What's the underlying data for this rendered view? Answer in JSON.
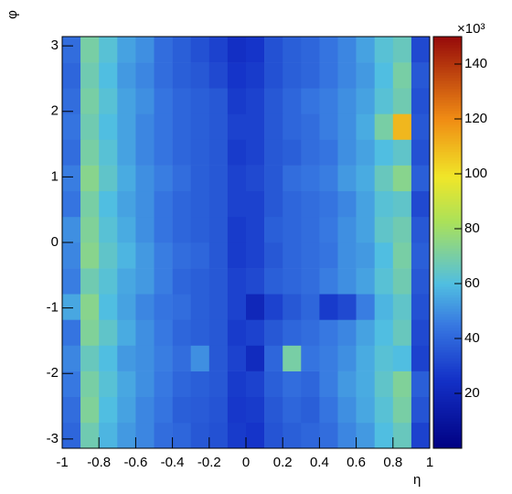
{
  "chart_data": {
    "type": "heatmap",
    "x_label": "η",
    "y_label": "φ",
    "z_multiplier": "×10³",
    "x_edges": [
      -1,
      -0.9,
      -0.8,
      -0.7,
      -0.6,
      -0.5,
      -0.4,
      -0.3,
      -0.2,
      -0.1,
      0,
      0.1,
      0.2,
      0.3,
      0.4,
      0.5,
      0.6,
      0.7,
      0.8,
      0.9,
      1
    ],
    "y_edges": [
      -3.1416,
      -2.7489,
      -2.3562,
      -1.9635,
      -1.5708,
      -1.1781,
      -0.7854,
      -0.3927,
      0,
      0.3927,
      0.7854,
      1.1781,
      1.5708,
      1.9635,
      2.3562,
      2.7489,
      3.1416
    ],
    "values": [
      [
        40,
        68,
        58,
        52,
        48,
        42,
        40,
        36,
        34,
        28,
        26,
        35,
        38,
        40,
        42,
        48,
        52,
        60,
        66,
        30
      ],
      [
        42,
        72,
        60,
        54,
        48,
        44,
        38,
        37,
        35,
        27,
        28,
        36,
        40,
        38,
        44,
        50,
        55,
        62,
        70,
        35
      ],
      [
        45,
        70,
        62,
        55,
        50,
        45,
        40,
        38,
        36,
        28,
        30,
        38,
        42,
        40,
        46,
        52,
        56,
        64,
        72,
        38
      ],
      [
        48,
        66,
        60,
        52,
        50,
        46,
        42,
        50,
        36,
        30,
        22,
        40,
        70,
        44,
        46,
        50,
        56,
        62,
        60,
        30
      ],
      [
        44,
        72,
        64,
        56,
        50,
        45,
        40,
        38,
        36,
        28,
        30,
        36,
        40,
        42,
        45,
        48,
        54,
        60,
        66,
        32
      ],
      [
        55,
        74,
        60,
        54,
        48,
        44,
        42,
        38,
        36,
        30,
        20,
        30,
        36,
        40,
        28,
        32,
        46,
        58,
        64,
        34
      ],
      [
        46,
        68,
        62,
        55,
        52,
        46,
        40,
        38,
        36,
        30,
        32,
        38,
        40,
        42,
        46,
        50,
        54,
        62,
        68,
        36
      ],
      [
        48,
        74,
        64,
        58,
        52,
        46,
        42,
        40,
        36,
        28,
        30,
        36,
        40,
        42,
        44,
        50,
        52,
        60,
        70,
        38
      ],
      [
        50,
        72,
        62,
        56,
        50,
        44,
        40,
        38,
        36,
        28,
        30,
        38,
        40,
        42,
        45,
        50,
        54,
        64,
        68,
        36
      ],
      [
        44,
        70,
        60,
        54,
        50,
        44,
        40,
        38,
        36,
        30,
        30,
        36,
        40,
        42,
        44,
        48,
        54,
        62,
        64,
        32
      ],
      [
        46,
        74,
        64,
        56,
        50,
        46,
        42,
        38,
        36,
        30,
        32,
        36,
        42,
        44,
        46,
        52,
        56,
        66,
        74,
        38
      ],
      [
        42,
        70,
        62,
        54,
        48,
        44,
        40,
        38,
        36,
        28,
        30,
        36,
        38,
        42,
        44,
        50,
        54,
        60,
        64,
        34
      ],
      [
        44,
        68,
        60,
        54,
        48,
        44,
        40,
        38,
        36,
        30,
        30,
        36,
        40,
        42,
        46,
        50,
        56,
        70,
        110,
        36
      ],
      [
        42,
        70,
        62,
        54,
        50,
        44,
        40,
        38,
        36,
        28,
        30,
        36,
        40,
        44,
        46,
        50,
        54,
        62,
        68,
        34
      ],
      [
        40,
        68,
        60,
        52,
        48,
        42,
        38,
        36,
        32,
        26,
        28,
        34,
        38,
        40,
        44,
        48,
        52,
        60,
        70,
        36
      ],
      [
        42,
        70,
        62,
        54,
        50,
        42,
        38,
        34,
        30,
        24,
        26,
        34,
        38,
        40,
        44,
        48,
        54,
        62,
        66,
        32
      ]
    ],
    "xlim": [
      -1,
      1
    ],
    "xticks": [
      -1,
      -0.8,
      -0.6,
      -0.4,
      -0.2,
      0,
      0.2,
      0.4,
      0.6,
      0.8,
      1
    ],
    "ylim": [
      -3.1416,
      3.1416
    ],
    "yticks": [
      -3,
      -2,
      -1,
      0,
      1,
      2,
      3
    ],
    "zlim": [
      0,
      150
    ],
    "zticks": [
      20,
      40,
      60,
      80,
      100,
      120,
      140
    ],
    "colormap": "rainbow"
  }
}
